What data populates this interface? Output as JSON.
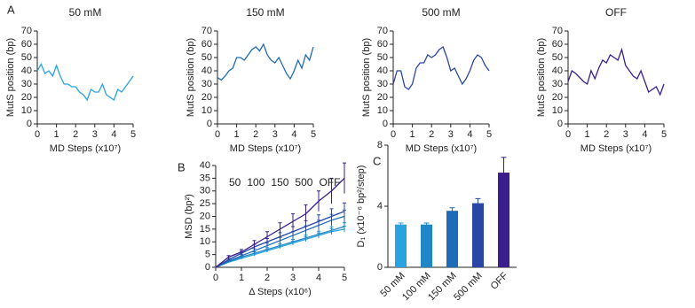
{
  "chart_data": [
    {
      "type": "line",
      "panel_label": "A",
      "title": "50 mM",
      "x_label": "MD Steps (x10⁷)",
      "y_label": "MutS position (bp)",
      "x": [
        0,
        0.2,
        0.4,
        0.6,
        0.8,
        1,
        1.2,
        1.4,
        1.6,
        1.8,
        2,
        2.2,
        2.4,
        2.6,
        2.8,
        3,
        3.2,
        3.4,
        3.6,
        3.8,
        4,
        4.2,
        4.4,
        4.6,
        4.8,
        5
      ],
      "series": [
        {
          "color": "#29a3df",
          "values": [
            40,
            45,
            38,
            40,
            36,
            44,
            36,
            30,
            30,
            28,
            28,
            24,
            22,
            18,
            26,
            24,
            24,
            30,
            22,
            20,
            18,
            26,
            24,
            28,
            32,
            36
          ]
        }
      ],
      "xlim": [
        0,
        5
      ],
      "xticks": [
        0,
        1,
        2,
        3,
        4,
        5
      ],
      "ylim": [
        0,
        70
      ],
      "yticks": [
        0,
        10,
        20,
        30,
        40,
        50,
        60,
        70
      ]
    },
    {
      "type": "line",
      "title": "150 mM",
      "x_label": "MD Steps (x10⁷)",
      "y_label": "MutS position (bp)",
      "x": [
        0,
        0.2,
        0.4,
        0.6,
        0.8,
        1,
        1.2,
        1.4,
        1.6,
        1.8,
        2,
        2.2,
        2.4,
        2.6,
        2.8,
        3,
        3.2,
        3.4,
        3.6,
        3.8,
        4,
        4.2,
        4.4,
        4.6,
        4.8,
        5
      ],
      "series": [
        {
          "color": "#1e6bb8",
          "values": [
            35,
            33,
            36,
            40,
            42,
            50,
            50,
            48,
            52,
            56,
            58,
            55,
            60,
            52,
            48,
            46,
            50,
            44,
            38,
            34,
            40,
            48,
            42,
            52,
            48,
            58
          ]
        }
      ],
      "xlim": [
        0,
        5
      ],
      "xticks": [
        0,
        1,
        2,
        3,
        4,
        5
      ],
      "ylim": [
        0,
        70
      ],
      "yticks": [
        0,
        10,
        20,
        30,
        40,
        50,
        60,
        70
      ]
    },
    {
      "type": "line",
      "title": "500 mM",
      "x_label": "MD Steps (x10⁷)",
      "y_label": "MutS position (bp)",
      "x": [
        0,
        0.2,
        0.4,
        0.6,
        0.8,
        1,
        1.2,
        1.4,
        1.6,
        1.8,
        2,
        2.2,
        2.4,
        2.6,
        2.8,
        3,
        3.2,
        3.4,
        3.6,
        3.8,
        4,
        4.2,
        4.4,
        4.6,
        4.8,
        5
      ],
      "series": [
        {
          "color": "#2946a6",
          "values": [
            30,
            40,
            40,
            28,
            26,
            30,
            42,
            46,
            46,
            52,
            50,
            52,
            56,
            58,
            50,
            40,
            42,
            36,
            30,
            34,
            40,
            48,
            52,
            50,
            44,
            40
          ]
        }
      ],
      "xlim": [
        0,
        5
      ],
      "xticks": [
        0,
        1,
        2,
        3,
        4,
        5
      ],
      "ylim": [
        0,
        70
      ],
      "yticks": [
        0,
        10,
        20,
        30,
        40,
        50,
        60,
        70
      ]
    },
    {
      "type": "line",
      "title": "OFF",
      "x_label": "MD Steps (x10⁷)",
      "y_label": "MutS position (bp)",
      "x": [
        0,
        0.2,
        0.4,
        0.6,
        0.8,
        1,
        1.2,
        1.4,
        1.6,
        1.8,
        2,
        2.2,
        2.4,
        2.6,
        2.8,
        3,
        3.2,
        3.4,
        3.6,
        3.8,
        4,
        4.2,
        4.4,
        4.6,
        4.8,
        5
      ],
      "series": [
        {
          "color": "#3b1e8e",
          "values": [
            32,
            40,
            38,
            35,
            32,
            30,
            40,
            34,
            42,
            48,
            46,
            52,
            50,
            48,
            56,
            44,
            40,
            36,
            34,
            40,
            32,
            24,
            26,
            28,
            22,
            30
          ]
        }
      ],
      "xlim": [
        0,
        5
      ],
      "xticks": [
        0,
        1,
        2,
        3,
        4,
        5
      ],
      "ylim": [
        0,
        70
      ],
      "yticks": [
        0,
        10,
        20,
        30,
        40,
        50,
        60,
        70
      ]
    },
    {
      "type": "line",
      "panel_label": "B",
      "x_label": "Δ Steps (x10⁶)",
      "y_label": "MSD (bp²)",
      "legend": "upper left",
      "x": [
        0,
        0.5,
        1,
        1.5,
        2,
        2.5,
        3,
        3.5,
        4,
        4.5,
        5
      ],
      "series": [
        {
          "name": "50",
          "color": "#29a3df",
          "values": [
            0,
            2,
            3.5,
            5,
            6.5,
            8,
            9.5,
            11,
            12.5,
            14,
            15
          ],
          "errors": [
            0,
            0.3,
            0.4,
            0.5,
            0.6,
            0.7,
            0.8,
            0.9,
            1,
            1.1,
            1.2
          ]
        },
        {
          "name": "100",
          "color": "#1f86c8",
          "values": [
            0,
            2.2,
            4,
            5.5,
            7,
            8.5,
            10,
            11.5,
            13,
            14.5,
            16
          ],
          "errors": [
            0,
            0.3,
            0.5,
            0.6,
            0.7,
            0.8,
            1,
            1.1,
            1.2,
            1.4,
            1.5
          ]
        },
        {
          "name": "150",
          "color": "#1e6bb8",
          "values": [
            0,
            2.5,
            4.5,
            6.5,
            8.5,
            10.5,
            12.5,
            14.5,
            16.5,
            18.5,
            20
          ],
          "errors": [
            0,
            0.4,
            0.6,
            0.8,
            1,
            1.2,
            1.5,
            1.8,
            2,
            2.3,
            2.5
          ]
        },
        {
          "name": "500",
          "color": "#2946a6",
          "values": [
            0,
            3,
            5.5,
            8,
            10,
            12,
            14,
            16,
            18,
            20,
            22
          ],
          "errors": [
            0,
            0.5,
            0.8,
            1,
            1.3,
            1.6,
            2,
            2.3,
            2.6,
            3,
            3.3
          ]
        },
        {
          "name": "OFF",
          "color": "#3b1e8e",
          "values": [
            0,
            4,
            6,
            9,
            12,
            15,
            18,
            21,
            26,
            30,
            35
          ],
          "errors": [
            0,
            0.6,
            1,
            1.5,
            2,
            2.5,
            3,
            3.5,
            4,
            5,
            6
          ]
        }
      ],
      "xlim": [
        0,
        5
      ],
      "xticks": [
        0,
        1,
        2,
        3,
        4,
        5
      ],
      "ylim": [
        0,
        40
      ],
      "yticks": [
        0,
        5,
        10,
        15,
        20,
        25,
        30,
        35,
        40
      ]
    },
    {
      "type": "bar",
      "panel_label": "C",
      "y_label": "D₁ (x10⁻⁶ bp²/step)",
      "categories": [
        "50 mM",
        "100 mM",
        "150 mM",
        "500 mM",
        "OFF"
      ],
      "values": [
        2.8,
        2.8,
        3.7,
        4.2,
        6.2
      ],
      "errors": [
        0.1,
        0.1,
        0.2,
        0.3,
        1.0
      ],
      "colors": [
        "#29a3df",
        "#1f86c8",
        "#1e6bb8",
        "#2946a6",
        "#3b1e8e"
      ],
      "ylim": [
        0,
        8
      ],
      "yticks": [
        0,
        4,
        8
      ]
    }
  ]
}
